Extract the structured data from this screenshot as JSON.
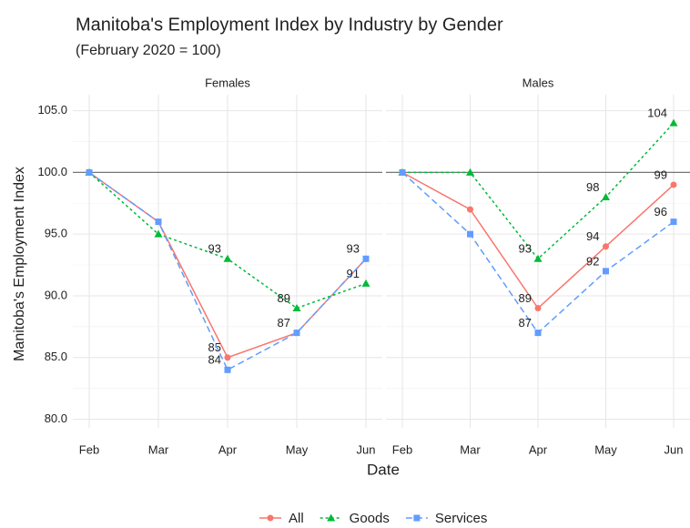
{
  "title": "Manitoba's Employment Index by Industry by Gender",
  "subtitle": "(February 2020 = 100)",
  "xlabel": "Date",
  "ylabel": "Manitoba's Employment Index",
  "chart_data": [
    {
      "type": "line",
      "title": "Females",
      "categories": [
        "Feb",
        "Mar",
        "Apr",
        "May",
        "Jun"
      ],
      "ylim": [
        79.3,
        106.3
      ],
      "yticks": [
        {
          "value": 80,
          "label": "80.0"
        },
        {
          "value": 85,
          "label": "85.0"
        },
        {
          "value": 90,
          "label": "90.0"
        },
        {
          "value": 95,
          "label": "95.0"
        },
        {
          "value": 100,
          "label": "100.0"
        },
        {
          "value": 105,
          "label": "105.0"
        }
      ],
      "grid": true,
      "reference_line": 100,
      "series": [
        {
          "name": "All",
          "color": "#f8766d",
          "marker": "circle",
          "dash": "none",
          "values": [
            100,
            96,
            85,
            87,
            93
          ],
          "value_labels": [
            null,
            null,
            "85",
            null,
            null
          ]
        },
        {
          "name": "Goods",
          "color": "#00ba38",
          "marker": "triangle",
          "dash": "3,3",
          "values": [
            100,
            95,
            93,
            89,
            91
          ],
          "value_labels": [
            null,
            null,
            "93",
            "89",
            "91"
          ]
        },
        {
          "name": "Services",
          "color": "#619cff",
          "marker": "square",
          "dash": "7,4",
          "values": [
            100,
            96,
            84,
            87,
            93
          ],
          "value_labels": [
            null,
            null,
            "84",
            "87",
            "93"
          ]
        }
      ]
    },
    {
      "type": "line",
      "title": "Males",
      "categories": [
        "Feb",
        "Mar",
        "Apr",
        "May",
        "Jun"
      ],
      "ylim": [
        79.3,
        106.3
      ],
      "yticks": [
        80,
        85,
        90,
        95,
        100,
        105
      ],
      "grid": true,
      "reference_line": 100,
      "series": [
        {
          "name": "All",
          "color": "#f8766d",
          "marker": "circle",
          "dash": "none",
          "values": [
            100,
            97,
            89,
            94,
            99
          ],
          "value_labels": [
            null,
            null,
            "89",
            "94",
            "99"
          ]
        },
        {
          "name": "Goods",
          "color": "#00ba38",
          "marker": "triangle",
          "dash": "3,3",
          "values": [
            100,
            100,
            93,
            98,
            104
          ],
          "value_labels": [
            null,
            null,
            "93",
            "98",
            "104"
          ]
        },
        {
          "name": "Services",
          "color": "#619cff",
          "marker": "square",
          "dash": "7,4",
          "values": [
            100,
            95,
            87,
            92,
            96
          ],
          "value_labels": [
            null,
            null,
            "87",
            "92",
            "96"
          ]
        }
      ]
    }
  ]
}
